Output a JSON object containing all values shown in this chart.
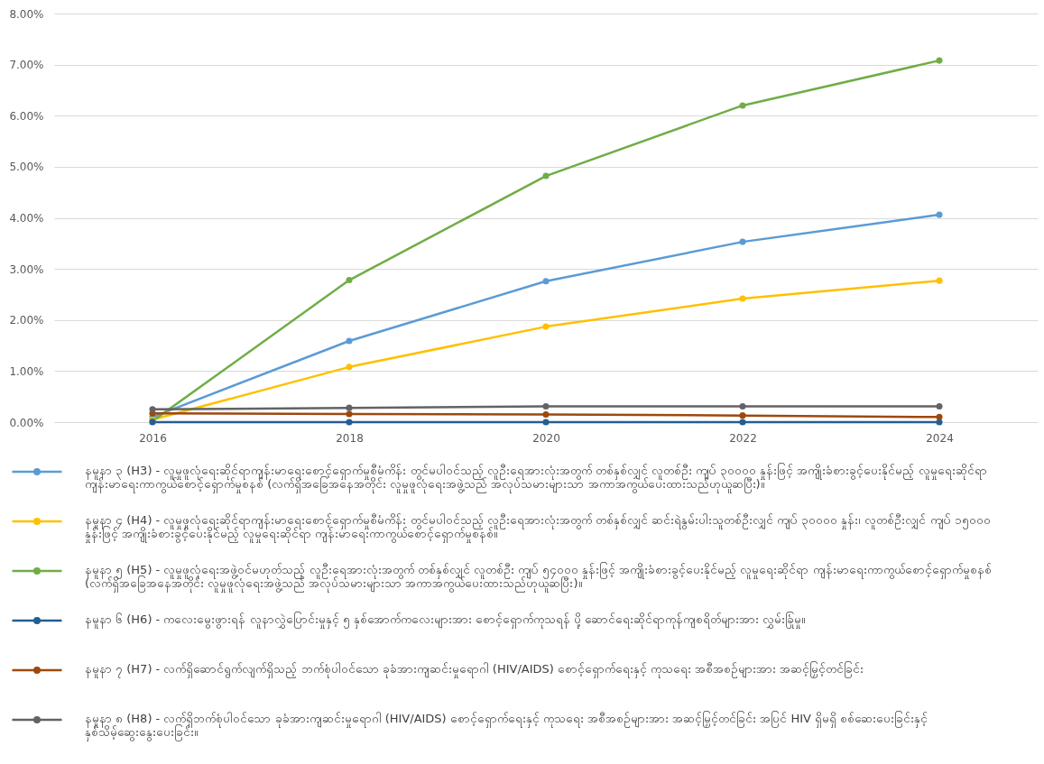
{
  "chart_data": {
    "type": "line",
    "categories": [
      "2016",
      "2018",
      "2020",
      "2022",
      "2024"
    ],
    "ylim": [
      0,
      8
    ],
    "yticks": [
      {
        "value": 0,
        "label": "0.00%"
      },
      {
        "value": 1,
        "label": "1.00%"
      },
      {
        "value": 2,
        "label": "2.00%"
      },
      {
        "value": 3,
        "label": "3.00%"
      },
      {
        "value": 4,
        "label": "4.00%"
      },
      {
        "value": 5,
        "label": "5.00%"
      },
      {
        "value": 6,
        "label": "6.00%"
      },
      {
        "value": 7,
        "label": "7.00%"
      },
      {
        "value": 8,
        "label": "8.00%"
      }
    ],
    "grid": "y",
    "legend": "bottom",
    "marker": "circle",
    "line_style": "solid",
    "series": [
      {
        "name": "နမူနာ ၃ (H3) - လူမှုဖူလုံရေးဆိုင်ရာကျန်းမာရေးစောင့်ရှောက်မှုစီမံကိန်း တွင်မပါဝင်သည့် လူဦးရေအားလုံးအတွက် တစ်နှစ်လျှင် လူတစ်ဦး ကျပ် ၃၀၀၀၀ နှုန်းဖြင့် အကျိုးခံစားခွင့်ပေးနိုင်မည့် လူမှုရေးဆိုင်ရာ ကျန်းမာရေးကာကွယ်စောင့်ရှောက်မှုစနစ် (လက်ရှိအခြေအနေအတိုင်း လူမှုဖူလုံရေးအဖွဲ့သည် အလုပ်သမားများသာ အကာအကွယ်ပေးထားသည်ဟုယူဆပြီး)။",
        "color": "#5b9bd5",
        "values": [
          0.1,
          1.59,
          2.76,
          3.53,
          4.06
        ]
      },
      {
        "name": "နမူနာ ၄ (H4) - လူမှုဖူလုံရေးဆိုင်ရာကျန်းမာရေးစောင့်ရှောက်မှုစီမံကိန်း တွင်မပါဝင်သည့် လူဦးရေအားလုံးအတွက် တစ်နှစ်လျှင် ဆင်းရဲနွမ်းပါးသူတစ်ဦးလျှင် ကျပ် ၃၀၀၀၀ နှုန်း၊ လူတစ်ဦးလျှင် ကျပ် ၁၅၀၀၀ နှုန်းဖြင့် အကျိုးခံစားခွင့်ပေးနိုင်မည့် လူမှုရေးဆိုင်ရာ ကျန်းမာရေးကာကွယ်စောင့်ရှောက်မှုစနစ်။",
        "color": "#ffc000",
        "values": [
          0.05,
          1.08,
          1.87,
          2.42,
          2.77
        ]
      },
      {
        "name": "နမူနာ ၅ (H5) - လူမှုဖူလုံရေးအဖွဲ့ဝင်မဟုတ်သည့် လူဦးရေအားလုံးအတွက် တစ်နှစ်လျှင် လူတစ်ဦး ကျပ် ၅၄၀၀၀ နှုန်းဖြင့် အကျိုးခံစားခွင့်ပေးနိုင်မည့် လူမှုရေးဆိုင်ရာ ကျန်းမာရေးကာကွယ်စောင့်ရှောက်မှုစနစ် (လက်ရှိအခြေအနေအတိုင်း လူမှုဖူလုံရေးအဖွဲ့သည် အလုပ်သမားများသာ အကာအကွယ်ပေးထားသည်ဟုယူဆပြီး)။",
        "color": "#70ad47",
        "values": [
          0.02,
          2.78,
          4.82,
          6.2,
          7.08
        ]
      },
      {
        "name": "နမူနာ ၆ (H6) - ကလေးမွေးဖွားရန် လူနာလွှဲပြောင်းမှုနှင့် ၅ နှစ်အောက်ကလေးများအား စောင့်ရှောက်ကုသရန် ပို့ ဆောင်ရေးဆိုင်ရာကုန်ကျစရိတ်များအား လွှမ်းခြုံမှု။",
        "color": "#255e91",
        "values": [
          0,
          0,
          0,
          0,
          0
        ]
      },
      {
        "name": "နမူနာ ၇ (H7) - လက်ရှိဆောင်ရွက်လျက်ရှိသည့် ဘက်စုံပါဝင်သော ခုခံအားကျဆင်းမှုရောဂါ (HIV/AIDS) စောင့်ရှောက်ရေးနှင့် ကုသရေး အစီအစဉ်များအား အဆင့်မြှင့်တင်ခြင်း",
        "color": "#9e480e",
        "values": [
          0.17,
          0.16,
          0.15,
          0.13,
          0.1
        ]
      },
      {
        "name": "နမူနာ ၈ (H8) - လက်ရှိဘက်စုံပါဝင်သော ခုခံအားကျဆင်းမှုရောဂါ (HIV/AIDS) စောင့်ရှောက်ရေးနှင့် ကုသရေး အစီအစဉ်များအား အဆင့်မြှင့်တင်ခြင်း အပြင် HIV ရှိမရှိ စစ်ဆေးပေးခြင်းနှင့် နှစ်သိမ့်ဆွေးနွေးပေးခြင်း။",
        "color": "#636363",
        "values": [
          0.25,
          0.28,
          0.31,
          0.31,
          0.31
        ]
      }
    ]
  }
}
